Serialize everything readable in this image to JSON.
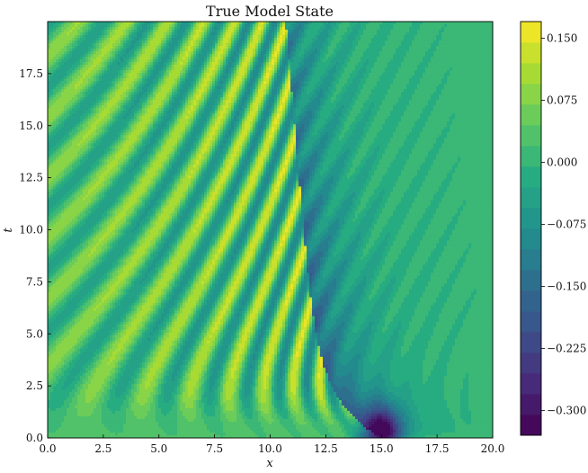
{
  "chart_data": {
    "type": "heatmap",
    "subtype": "filled-contour",
    "title": "True Model State",
    "xlabel": "x",
    "ylabel": "t",
    "xlim": [
      0.0,
      20.0
    ],
    "ylim": [
      0.0,
      20.0
    ],
    "x_ticks": [
      "0.0",
      "2.5",
      "5.0",
      "7.5",
      "10.0",
      "12.5",
      "15.0",
      "17.5",
      "20.0"
    ],
    "y_ticks": [
      "0.0",
      "2.5",
      "5.0",
      "7.5",
      "10.0",
      "12.5",
      "15.0",
      "17.5"
    ],
    "colorbar": {
      "range": [
        -0.33,
        0.17
      ],
      "ticks": [
        "−0.300",
        "−0.225",
        "−0.150",
        "−0.075",
        "0.000",
        "0.075",
        "0.150"
      ],
      "colormap": "viridis",
      "levels": 20
    },
    "grid": false,
    "features": {
      "shock_origin_x": 15.0,
      "shock_trough_value": -0.32,
      "crest_peak_value": 0.16,
      "crest_count": 11
    }
  }
}
